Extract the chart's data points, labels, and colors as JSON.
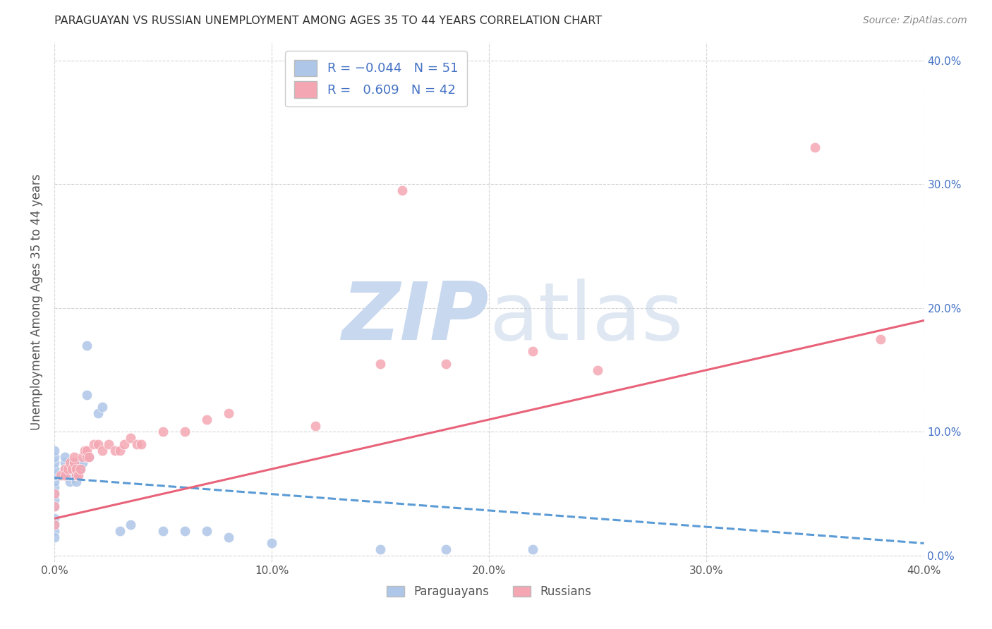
{
  "title": "PARAGUAYAN VS RUSSIAN UNEMPLOYMENT AMONG AGES 35 TO 44 YEARS CORRELATION CHART",
  "source": "Source: ZipAtlas.com",
  "ylabel": "Unemployment Among Ages 35 to 44 years",
  "xlim": [
    0.0,
    0.4
  ],
  "ylim": [
    -0.005,
    0.415
  ],
  "paraguayan_R": -0.044,
  "paraguayan_N": 51,
  "russian_R": 0.609,
  "russian_N": 42,
  "background_color": "#ffffff",
  "plot_bg_color": "#ffffff",
  "grid_color": "#cccccc",
  "paraguayan_color": "#aec6e8",
  "russian_color": "#f4a7b3",
  "paraguayan_line_color": "#5b9bd5",
  "russian_line_color": "#e8637a",
  "paraguayan_x": [
    0.0,
    0.0,
    0.0,
    0.0,
    0.0,
    0.0,
    0.0,
    0.0,
    0.0,
    0.0,
    0.0,
    0.0,
    0.0,
    0.0,
    0.004,
    0.005,
    0.005,
    0.005,
    0.006,
    0.006,
    0.007,
    0.007,
    0.007,
    0.008,
    0.008,
    0.009,
    0.009,
    0.009,
    0.01,
    0.01,
    0.01,
    0.01,
    0.011,
    0.011,
    0.012,
    0.013,
    0.015,
    0.015,
    0.016,
    0.02,
    0.022,
    0.03,
    0.035,
    0.05,
    0.06,
    0.07,
    0.08,
    0.1,
    0.15,
    0.18,
    0.22
  ],
  "paraguayan_y": [
    0.04,
    0.05,
    0.055,
    0.06,
    0.065,
    0.07,
    0.075,
    0.08,
    0.085,
    0.045,
    0.03,
    0.025,
    0.02,
    0.015,
    0.065,
    0.07,
    0.075,
    0.08,
    0.065,
    0.07,
    0.06,
    0.065,
    0.07,
    0.07,
    0.075,
    0.065,
    0.07,
    0.075,
    0.06,
    0.065,
    0.07,
    0.075,
    0.07,
    0.075,
    0.07,
    0.075,
    0.17,
    0.13,
    0.08,
    0.115,
    0.12,
    0.02,
    0.025,
    0.02,
    0.02,
    0.02,
    0.015,
    0.01,
    0.005,
    0.005,
    0.005
  ],
  "russian_x": [
    0.0,
    0.0,
    0.0,
    0.003,
    0.005,
    0.005,
    0.006,
    0.007,
    0.008,
    0.009,
    0.009,
    0.01,
    0.01,
    0.011,
    0.012,
    0.013,
    0.014,
    0.015,
    0.015,
    0.016,
    0.018,
    0.02,
    0.022,
    0.025,
    0.028,
    0.03,
    0.032,
    0.035,
    0.038,
    0.04,
    0.05,
    0.06,
    0.07,
    0.08,
    0.12,
    0.15,
    0.16,
    0.18,
    0.22,
    0.25,
    0.35,
    0.38
  ],
  "russian_y": [
    0.05,
    0.04,
    0.025,
    0.065,
    0.07,
    0.065,
    0.07,
    0.075,
    0.07,
    0.075,
    0.08,
    0.065,
    0.07,
    0.065,
    0.07,
    0.08,
    0.085,
    0.08,
    0.085,
    0.08,
    0.09,
    0.09,
    0.085,
    0.09,
    0.085,
    0.085,
    0.09,
    0.095,
    0.09,
    0.09,
    0.1,
    0.1,
    0.11,
    0.115,
    0.105,
    0.155,
    0.295,
    0.155,
    0.165,
    0.15,
    0.33,
    0.175
  ],
  "par_line_x0": 0.0,
  "par_line_x1": 0.4,
  "par_line_y0": 0.063,
  "par_line_y1": 0.01,
  "rus_line_x0": 0.0,
  "rus_line_x1": 0.4,
  "rus_line_y0": 0.03,
  "rus_line_y1": 0.19
}
